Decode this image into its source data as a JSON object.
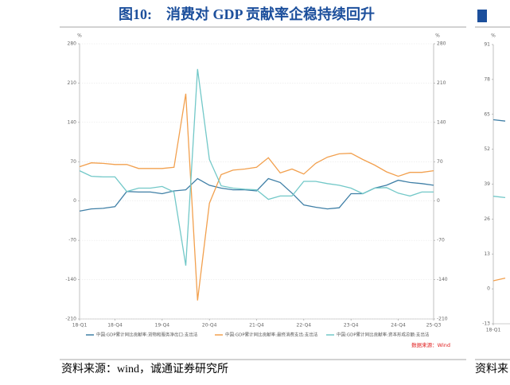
{
  "chart_data": [
    {
      "type": "line",
      "title": "图10:　消费对 GDP 贡献率企稳持续回升",
      "y_unit": "%",
      "y2_unit": "%",
      "categories": [
        "18-Q1",
        null,
        null,
        "18-Q4",
        null,
        null,
        null,
        "19-Q4",
        null,
        null,
        null,
        "20-Q4",
        null,
        null,
        null,
        "21-Q4",
        null,
        null,
        null,
        "22-Q4",
        null,
        null,
        null,
        "23-Q4",
        null,
        null,
        null,
        "24-Q4",
        null,
        null,
        "25-Q3"
      ],
      "ylim": [
        -210,
        280
      ],
      "yticks": [
        -210,
        -140,
        -70,
        0,
        70,
        140,
        210,
        280
      ],
      "y2lim": [
        -210,
        280
      ],
      "y2ticks": [
        -210,
        -140,
        -70,
        0,
        70,
        140,
        210,
        280
      ],
      "grid": true,
      "legend": "bottom",
      "series": [
        {
          "name": "中国:GDP累计同比贡献率:货物和服务净出口:支出法",
          "color": "#3f7fa6",
          "values": [
            -18,
            -14,
            -13,
            -10,
            17,
            16,
            16,
            13,
            18,
            20,
            40,
            28,
            23,
            20,
            20,
            18,
            40,
            33,
            14,
            -7,
            -11,
            -14,
            -12,
            13,
            13,
            23,
            28,
            37,
            33,
            31,
            28
          ]
        },
        {
          "name": "中国:GDP累计同比贡献率:最终消费支出:支出法",
          "color": "#f2a04e",
          "values": [
            61,
            68,
            67,
            65,
            65,
            58,
            58,
            58,
            60,
            191,
            -177,
            -4,
            47,
            55,
            57,
            60,
            77,
            50,
            57,
            48,
            67,
            78,
            84,
            85,
            74,
            64,
            52,
            44,
            51,
            51,
            54
          ]
        },
        {
          "name": "中国:GDP累计同比贡献率:资本形成总额:支出法",
          "color": "#72c8c8",
          "values": [
            54,
            44,
            43,
            43,
            17,
            23,
            23,
            26,
            16,
            -115,
            235,
            74,
            27,
            23,
            21,
            20,
            3,
            9,
            9,
            35,
            35,
            31,
            28,
            23,
            13,
            23,
            24,
            14,
            9,
            16,
            16
          ]
        }
      ],
      "source": "数据来源：Wind",
      "footer": "资料来源：wind，诚通证券研究所"
    },
    {
      "type": "line",
      "y_unit": "%",
      "categories": [
        "18-Q1",
        null
      ],
      "ylim": [
        -13,
        91
      ],
      "yticks": [
        -13,
        0,
        13,
        26,
        39,
        52,
        65,
        78,
        91
      ],
      "series": [
        {
          "color": "#3f7fa6",
          "values": [
            63,
            62.5
          ]
        },
        {
          "color": "#72c8c8",
          "values": [
            34.5,
            34
          ]
        },
        {
          "color": "#f2a04e",
          "values": [
            3,
            4
          ]
        }
      ],
      "footer": "资料来"
    }
  ]
}
